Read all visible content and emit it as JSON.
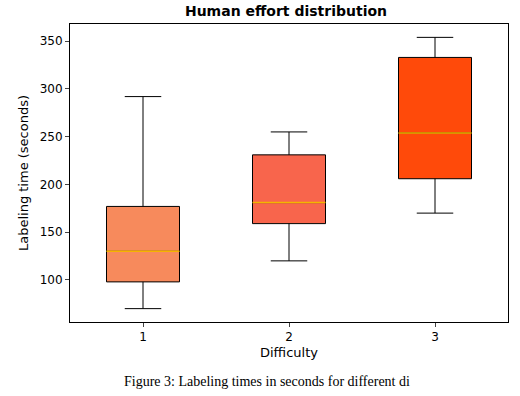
{
  "chart_data": {
    "type": "box",
    "title": "Human effort distribution",
    "x_label": "Difficulty",
    "y_label": "Labeling time (seconds)",
    "caption": "Figure 3: Labeling times in seconds for different di",
    "categories": [
      "1",
      "2",
      "3"
    ],
    "stats": [
      {
        "low": 70,
        "q1": 98,
        "median": 130,
        "q3": 177,
        "high": 292
      },
      {
        "low": 120,
        "q1": 159,
        "median": 181,
        "q3": 231,
        "high": 255
      },
      {
        "low": 170,
        "q1": 206,
        "median": 254,
        "q3": 333,
        "high": 354
      }
    ],
    "colors": [
      "#f78a5c",
      "#f8654c",
      "#ff4a0a"
    ],
    "ylim": [
      56,
      368
    ],
    "yticks": [
      100,
      150,
      200,
      250,
      300,
      350
    ],
    "grid": false
  }
}
